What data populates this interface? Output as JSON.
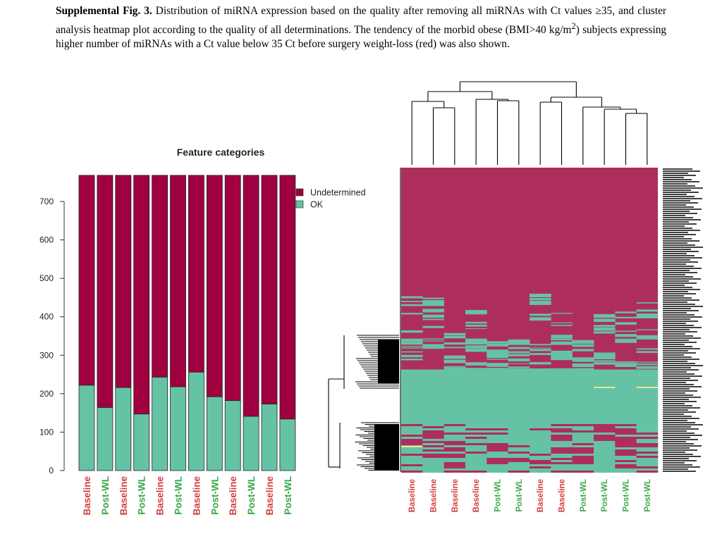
{
  "caption": {
    "label": "Supplemental Fig. 3.",
    "text_before_sup": " Distribution of miRNA expression based on the quality after removing all miRNAs with Ct values ≥35, and cluster analysis heatmap plot according to the quality of all determinations. The tendency of the morbid obese (BMI>40 kg/m",
    "sup": "2",
    "text_after_sup": ") subjects expressing higher number of miRNAs with a Ct value below 35 Ct before surgery weight-loss (red) was also shown."
  },
  "colors": {
    "undetermined": "#a0003f",
    "ok": "#66c2a5",
    "heatmap_undetermined": "#ad2e5c",
    "heatmap_ok": "#66c2a5",
    "heatmap_yellow": "#f0e68c",
    "baseline_label": "#d43f3f",
    "postwl_label": "#3aa84a",
    "dendrogram": "#000000"
  },
  "chart_data": [
    {
      "type": "bar",
      "stacked": true,
      "title": "Feature categories",
      "categories": [
        "Baseline",
        "Post-WL",
        "Baseline",
        "Post-WL",
        "Baseline",
        "Post-WL",
        "Baseline",
        "Post-WL",
        "Baseline",
        "Post-WL",
        "Baseline",
        "Post-WL"
      ],
      "category_groups": [
        "baseline",
        "postwl",
        "baseline",
        "postwl",
        "baseline",
        "postwl",
        "baseline",
        "postwl",
        "baseline",
        "postwl",
        "baseline",
        "postwl"
      ],
      "total": 768,
      "series": [
        {
          "name": "OK",
          "values": [
            222,
            164,
            216,
            147,
            243,
            218,
            256,
            192,
            182,
            141,
            173,
            134
          ]
        },
        {
          "name": "Undetermined",
          "values": [
            546,
            604,
            552,
            621,
            525,
            550,
            512,
            576,
            586,
            627,
            595,
            634
          ]
        }
      ],
      "legend": [
        "Undetermined",
        "OK"
      ],
      "legend_position": "top-right",
      "ylim": [
        0,
        768
      ],
      "yticks": [
        0,
        100,
        200,
        300,
        400,
        500,
        600,
        700
      ],
      "xlabel": "",
      "ylabel": ""
    },
    {
      "type": "heatmap",
      "columns": [
        "Baseline",
        "Baseline",
        "Baseline",
        "Baseline",
        "Post-WL",
        "Post-WL",
        "Baseline",
        "Baseline",
        "Post-WL",
        "Post-WL",
        "Post-WL",
        "Post-WL"
      ],
      "column_groups": [
        "baseline",
        "baseline",
        "baseline",
        "baseline",
        "postwl",
        "postwl",
        "baseline",
        "baseline",
        "postwl",
        "postwl",
        "postwl",
        "postwl"
      ],
      "categories": [
        "Undetermined",
        "OK"
      ],
      "rows": 768,
      "approx_ok_block_fraction": [
        0.0,
        0.36
      ],
      "dendrogram_columns": true,
      "dendrogram_rows": true
    }
  ]
}
